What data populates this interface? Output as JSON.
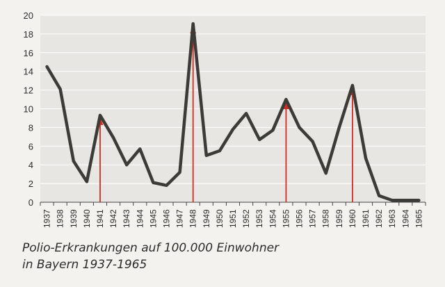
{
  "chart_data": {
    "type": "line",
    "title": "",
    "xlabel": "",
    "ylabel": "",
    "caption_line1": "Polio-Erkrankungen auf 100.000 Einwohner",
    "caption_line2": "in Bayern 1937-1965",
    "categories": [
      "1937",
      "1938",
      "1939",
      "1940",
      "1941",
      "1942",
      "1943",
      "1944",
      "1945",
      "1946",
      "1947",
      "1948",
      "1949",
      "1950",
      "1951",
      "1952",
      "1953",
      "1954",
      "1955",
      "1956",
      "1957",
      "1958",
      "1959",
      "1960",
      "1961",
      "1962",
      "1963",
      "1964",
      "1965"
    ],
    "yticks": [
      "0",
      "2",
      "4",
      "6",
      "8",
      "10",
      "12",
      "14",
      "16",
      "18",
      "20"
    ],
    "ylim": [
      0,
      20
    ],
    "grid": true,
    "legend": "none",
    "series": [
      {
        "values": [
          14.5,
          12.1,
          4.4,
          2.2,
          9.3,
          6.9,
          4.0,
          5.7,
          2.1,
          1.8,
          3.2,
          19.1,
          5.0,
          5.5,
          7.8,
          9.5,
          6.7,
          7.7,
          11.0,
          8.0,
          6.5,
          3.1,
          8.0,
          12.5,
          4.7,
          0.7,
          0.2,
          0.2,
          0.2
        ],
        "color": "#3b3b38"
      }
    ],
    "arrows": {
      "years": [
        "1941",
        "1948",
        "1955",
        "1960"
      ],
      "color": "#d42a22"
    }
  }
}
